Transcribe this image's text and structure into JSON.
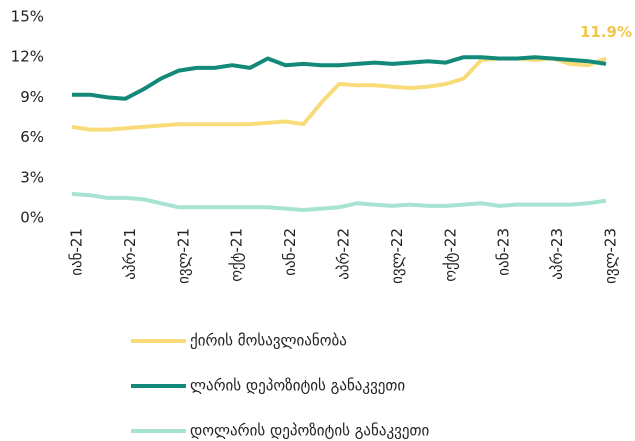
{
  "chart_data": {
    "type": "line",
    "categories": [
      "იან-21",
      null,
      null,
      "აპრ-21",
      null,
      null,
      "ივლ-21",
      null,
      null,
      "ოქტ-21",
      null,
      null,
      "იან-22",
      null,
      null,
      "აპრ-22",
      null,
      null,
      "ივლ-22",
      null,
      null,
      "ოქტ-22",
      null,
      null,
      "იან-23",
      null,
      null,
      "აპრ-23",
      null,
      null,
      "ივლ-23"
    ],
    "series": [
      {
        "name": "ქირის მოსავლიანობა",
        "color": "#f9dc7a",
        "values": [
          6.8,
          6.6,
          6.6,
          6.7,
          6.8,
          6.9,
          7.0,
          7.0,
          7.0,
          7.0,
          7.0,
          7.1,
          7.2,
          7.0,
          8.6,
          10.0,
          9.9,
          9.9,
          9.8,
          9.7,
          9.8,
          10.0,
          10.4,
          11.8,
          11.9,
          11.9,
          11.8,
          11.9,
          11.5,
          11.4,
          11.9
        ]
      },
      {
        "name": "ლარის დეპოზიტის განაკვეთი",
        "color": "#13897a",
        "values": [
          9.2,
          9.2,
          9.0,
          8.9,
          9.6,
          10.4,
          11.0,
          11.2,
          11.2,
          11.4,
          11.2,
          11.9,
          11.4,
          11.5,
          11.4,
          11.4,
          11.5,
          11.6,
          11.5,
          11.6,
          11.7,
          11.6,
          12.0,
          12.0,
          11.9,
          11.9,
          12.0,
          11.9,
          11.8,
          11.7,
          11.5
        ]
      },
      {
        "name": "დოლარის დეპოზიტის განაკვეთი",
        "color": "#a6e3d3",
        "values": [
          1.8,
          1.7,
          1.5,
          1.5,
          1.4,
          1.1,
          0.8,
          0.8,
          0.8,
          0.8,
          0.8,
          0.8,
          0.7,
          0.6,
          0.7,
          0.8,
          1.1,
          1.0,
          0.9,
          1.0,
          0.9,
          0.9,
          1.0,
          1.1,
          0.9,
          1.0,
          1.0,
          1.0,
          1.0,
          1.1,
          1.3
        ]
      }
    ],
    "ylim": [
      0,
      15
    ],
    "yticks": [
      {
        "value": 0,
        "label": "0%"
      },
      {
        "value": 3,
        "label": "3%"
      },
      {
        "value": 6,
        "label": "6%"
      },
      {
        "value": 9,
        "label": "9%"
      },
      {
        "value": 12,
        "label": "12%"
      },
      {
        "value": 15,
        "label": "15%"
      }
    ],
    "annotations": [
      {
        "label": "11.9%",
        "value": 11.9,
        "color": "#f3c64b"
      }
    ]
  }
}
